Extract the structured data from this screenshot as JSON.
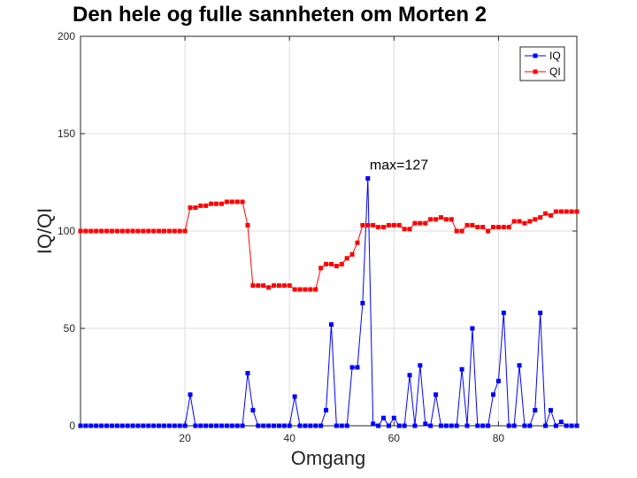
{
  "chart_data": {
    "type": "line",
    "title": "Den hele og fulle sannheten om Morten 2",
    "xlabel": "Omgang",
    "ylabel": "IQ/QI",
    "xlim": [
      0,
      95
    ],
    "ylim": [
      0,
      200
    ],
    "x_ticks": [
      "20",
      "40",
      "60",
      "80"
    ],
    "y_ticks": [
      "0",
      "50",
      "100",
      "150",
      "200"
    ],
    "x_tick_values": [
      20,
      40,
      60,
      80
    ],
    "y_tick_values": [
      0,
      50,
      100,
      150,
      200
    ],
    "grid": true,
    "legend_position": "top-right",
    "annotation": {
      "text": "max=127",
      "x": 54,
      "y": 127
    },
    "series": [
      {
        "name": "IQ",
        "color": "#0000ff",
        "x": [
          0,
          1,
          2,
          3,
          4,
          5,
          6,
          7,
          8,
          9,
          10,
          11,
          12,
          13,
          14,
          15,
          16,
          17,
          18,
          19,
          20,
          21,
          22,
          23,
          24,
          25,
          26,
          27,
          28,
          29,
          30,
          31,
          32,
          33,
          34,
          35,
          36,
          37,
          38,
          39,
          40,
          41,
          42,
          43,
          44,
          45,
          46,
          47,
          48,
          49,
          50,
          51,
          52,
          53,
          54,
          55,
          56,
          57,
          58,
          59,
          60,
          61,
          62,
          63,
          64,
          65,
          66,
          67,
          68,
          69,
          70,
          71,
          72,
          73,
          74,
          75,
          76,
          77,
          78,
          79,
          80,
          81,
          82,
          83,
          84,
          85,
          86,
          87,
          88,
          89,
          90,
          91,
          92,
          93,
          94,
          95
        ],
        "values": [
          0,
          0,
          0,
          0,
          0,
          0,
          0,
          0,
          0,
          0,
          0,
          0,
          0,
          0,
          0,
          0,
          0,
          0,
          0,
          0,
          0,
          16,
          0,
          0,
          0,
          0,
          0,
          0,
          0,
          0,
          0,
          0,
          27,
          8,
          0,
          0,
          0,
          0,
          0,
          0,
          0,
          15,
          0,
          0,
          0,
          0,
          0,
          8,
          52,
          0,
          0,
          0,
          30,
          30,
          63,
          127,
          1,
          0,
          4,
          0,
          4,
          0,
          0,
          26,
          0,
          31,
          1,
          0,
          16,
          0,
          0,
          0,
          0,
          29,
          0,
          50,
          0,
          0,
          0,
          16,
          23,
          58,
          0,
          0,
          31,
          0,
          0,
          8,
          58,
          0,
          8,
          0,
          2,
          0,
          0,
          0
        ]
      },
      {
        "name": "QI",
        "color": "#ff0000",
        "x": [
          0,
          1,
          2,
          3,
          4,
          5,
          6,
          7,
          8,
          9,
          10,
          11,
          12,
          13,
          14,
          15,
          16,
          17,
          18,
          19,
          20,
          21,
          22,
          23,
          24,
          25,
          26,
          27,
          28,
          29,
          30,
          31,
          32,
          33,
          34,
          35,
          36,
          37,
          38,
          39,
          40,
          41,
          42,
          43,
          44,
          45,
          46,
          47,
          48,
          49,
          50,
          51,
          52,
          53,
          54,
          55,
          56,
          57,
          58,
          59,
          60,
          61,
          62,
          63,
          64,
          65,
          66,
          67,
          68,
          69,
          70,
          71,
          72,
          73,
          74,
          75,
          76,
          77,
          78,
          79,
          80,
          81,
          82,
          83,
          84,
          85,
          86,
          87,
          88,
          89,
          90,
          91,
          92,
          93,
          94,
          95
        ],
        "values": [
          100,
          100,
          100,
          100,
          100,
          100,
          100,
          100,
          100,
          100,
          100,
          100,
          100,
          100,
          100,
          100,
          100,
          100,
          100,
          100,
          100,
          112,
          112,
          113,
          113,
          114,
          114,
          114,
          115,
          115,
          115,
          115,
          103,
          72,
          72,
          72,
          71,
          72,
          72,
          72,
          72,
          70,
          70,
          70,
          70,
          70,
          81,
          83,
          83,
          82,
          83,
          86,
          88,
          94,
          103,
          103,
          103,
          102,
          102,
          103,
          103,
          103,
          101,
          101,
          104,
          104,
          104,
          106,
          106,
          107,
          106,
          106,
          100,
          100,
          103,
          103,
          102,
          102,
          100,
          102,
          102,
          102,
          102,
          105,
          105,
          104,
          105,
          106,
          107,
          109,
          108,
          110,
          110,
          110,
          110,
          110
        ]
      }
    ]
  }
}
